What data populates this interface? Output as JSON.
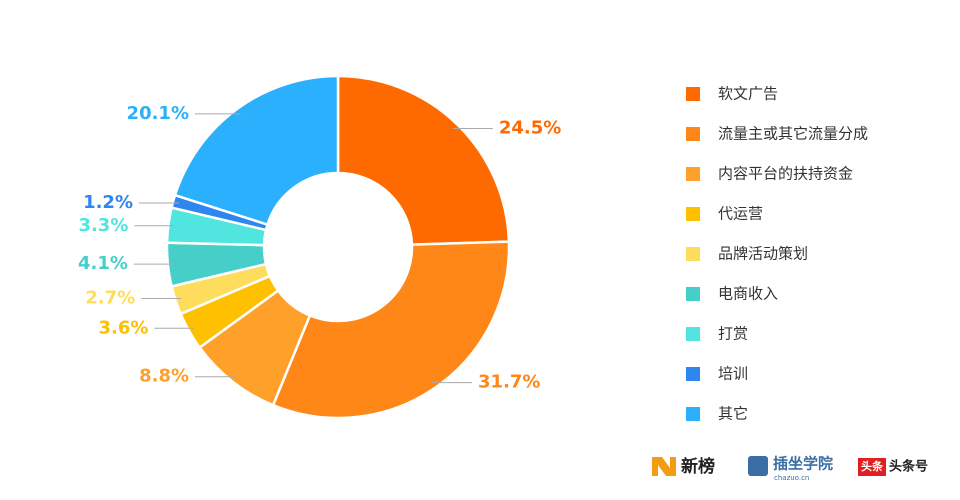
{
  "chart_data": {
    "type": "pie",
    "categories": [
      "软文广告",
      "流量主或其它流量分成",
      "内容平台的扶持资金",
      "代运营",
      "品牌活动策划",
      "电商收入",
      "打赏",
      "培训",
      "其它"
    ],
    "values": [
      24.5,
      31.7,
      8.8,
      3.6,
      2.7,
      4.1,
      3.3,
      1.2,
      20.1
    ],
    "value_labels": [
      "24.5%",
      "31.7%",
      "8.8%",
      "3.6%",
      "2.7%",
      "4.1%",
      "3.3%",
      "1.2%",
      "20.1%"
    ],
    "colors": [
      "#ff6a00",
      "#ff8717",
      "#ffa02a",
      "#ffc000",
      "#ffdd5c",
      "#45cfc8",
      "#50e6df",
      "#2f86ee",
      "#2bb0fd"
    ],
    "donut": true,
    "legend": "right",
    "footer_logos": [
      "新榜",
      "插坐学院",
      "chazuo.cn",
      "头条",
      "头条号"
    ]
  }
}
